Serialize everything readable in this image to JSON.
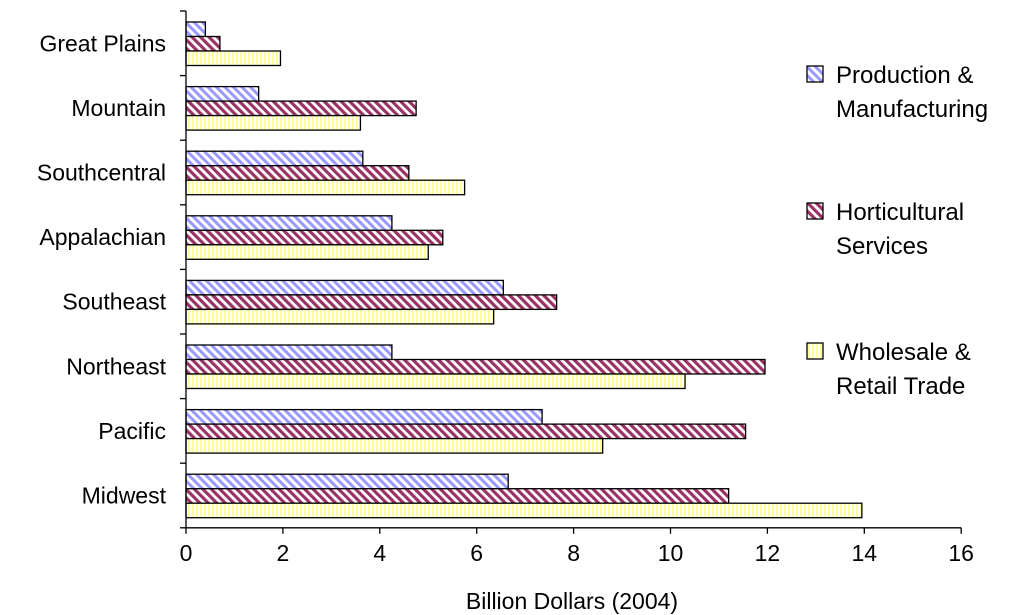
{
  "chart_data": {
    "type": "bar",
    "orientation": "horizontal",
    "categories": [
      "Great Plains",
      "Mountain",
      "Southcentral",
      "Appalachian",
      "Southeast",
      "Northeast",
      "Pacific",
      "Midwest"
    ],
    "series": [
      {
        "name": "Production & Manufacturing",
        "name_lines": [
          "Production &",
          "Manufacturing"
        ],
        "pattern": "diagonal-hatch-blue",
        "color": "#9999ff",
        "values": [
          0.4,
          1.5,
          3.65,
          4.25,
          6.55,
          4.25,
          7.35,
          6.65
        ]
      },
      {
        "name": "Horticultural Services",
        "name_lines": [
          "Horticultural",
          "Services"
        ],
        "pattern": "diagonal-hatch-maroon",
        "color": "#993366",
        "values": [
          0.7,
          4.75,
          4.6,
          5.3,
          7.65,
          11.95,
          11.55,
          11.2
        ]
      },
      {
        "name": "Wholesale & Retail Trade",
        "name_lines": [
          "Wholesale &",
          "Retail Trade"
        ],
        "pattern": "vertical-hatch-yellow",
        "color": "#ffffcc",
        "values": [
          1.95,
          3.6,
          5.75,
          5.0,
          6.35,
          10.3,
          8.6,
          13.95
        ]
      }
    ],
    "xlabel": "Billion Dollars (2004)",
    "ylabel": "",
    "xlim": [
      0,
      16
    ],
    "x_ticks": [
      "0",
      "2",
      "4",
      "6",
      "8",
      "10",
      "12",
      "14",
      "16"
    ],
    "grid": false,
    "legend_position": "right"
  }
}
